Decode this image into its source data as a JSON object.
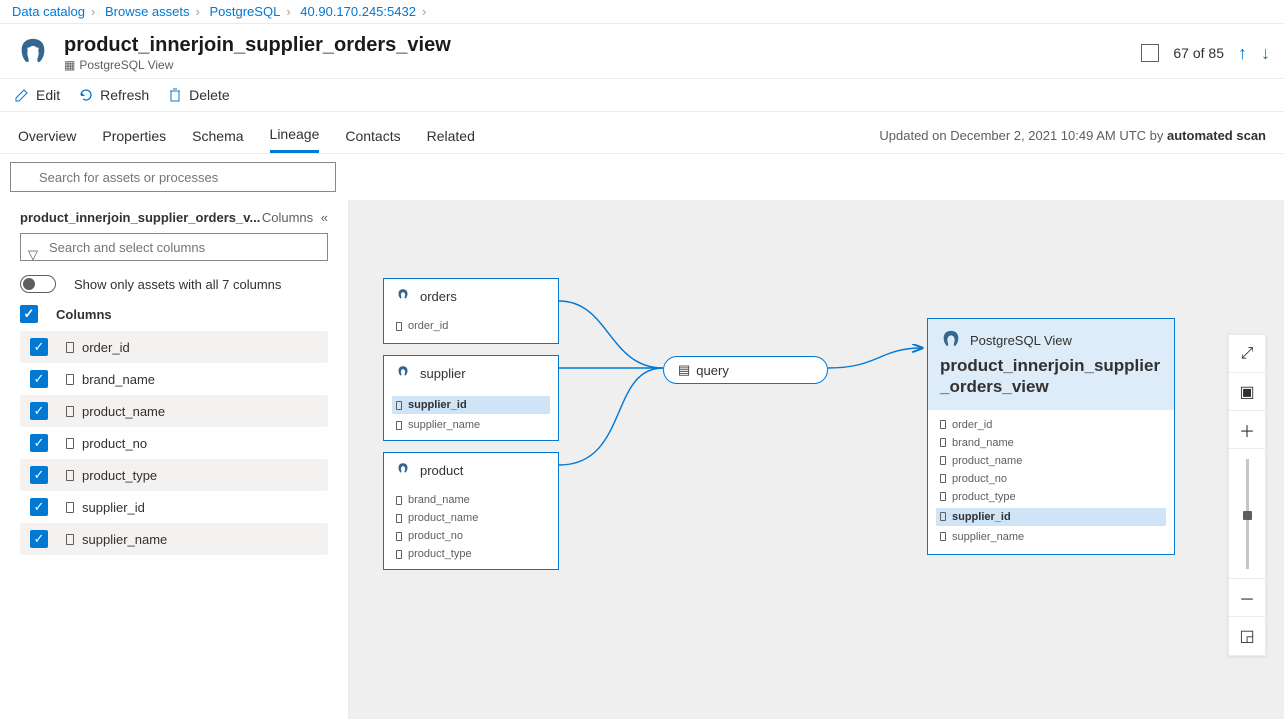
{
  "breadcrumb": [
    {
      "label": "Data catalog"
    },
    {
      "label": "Browse assets"
    },
    {
      "label": "PostgreSQL"
    },
    {
      "label": "40.90.170.245:5432"
    }
  ],
  "header": {
    "title": "product_innerjoin_supplier_orders_view",
    "subtype": "PostgreSQL View",
    "pager_index": "67",
    "pager_total": "85"
  },
  "actions": {
    "edit": "Edit",
    "refresh": "Refresh",
    "delete": "Delete"
  },
  "tabs": {
    "overview": "Overview",
    "properties": "Properties",
    "schema": "Schema",
    "lineage": "Lineage",
    "contacts": "Contacts",
    "related": "Related"
  },
  "updated": {
    "prefix": "Updated on ",
    "date": "December 2, 2021 10:49 AM UTC",
    "by": " by ",
    "who": "automated scan"
  },
  "search": {
    "placeholder": "Search for assets or processes"
  },
  "leftPanel": {
    "title": "product_innerjoin_supplier_orders_v...",
    "columnsLabel": "Columns",
    "filterPlaceholder": "Search and select columns",
    "showOnly": "Show only assets with all 7 columns",
    "sectionLabel": "Columns",
    "columns": [
      "order_id",
      "brand_name",
      "product_name",
      "product_no",
      "product_type",
      "supplier_id",
      "supplier_name"
    ]
  },
  "canvas": {
    "orders": {
      "title": "orders",
      "cols": [
        "order_id"
      ]
    },
    "supplier": {
      "title": "supplier",
      "highlight": "supplier_id",
      "cols": [
        "supplier_name"
      ]
    },
    "product": {
      "title": "product",
      "cols": [
        "brand_name",
        "product_name",
        "product_no",
        "product_type"
      ]
    },
    "query": "query",
    "view": {
      "type": "PostgreSQL View",
      "name": "product_innerjoin_supplier_orders_view",
      "cols": [
        "order_id",
        "brand_name",
        "product_name",
        "product_no",
        "product_type"
      ],
      "highlight": "supplier_id",
      "cols2": [
        "supplier_name"
      ]
    }
  }
}
